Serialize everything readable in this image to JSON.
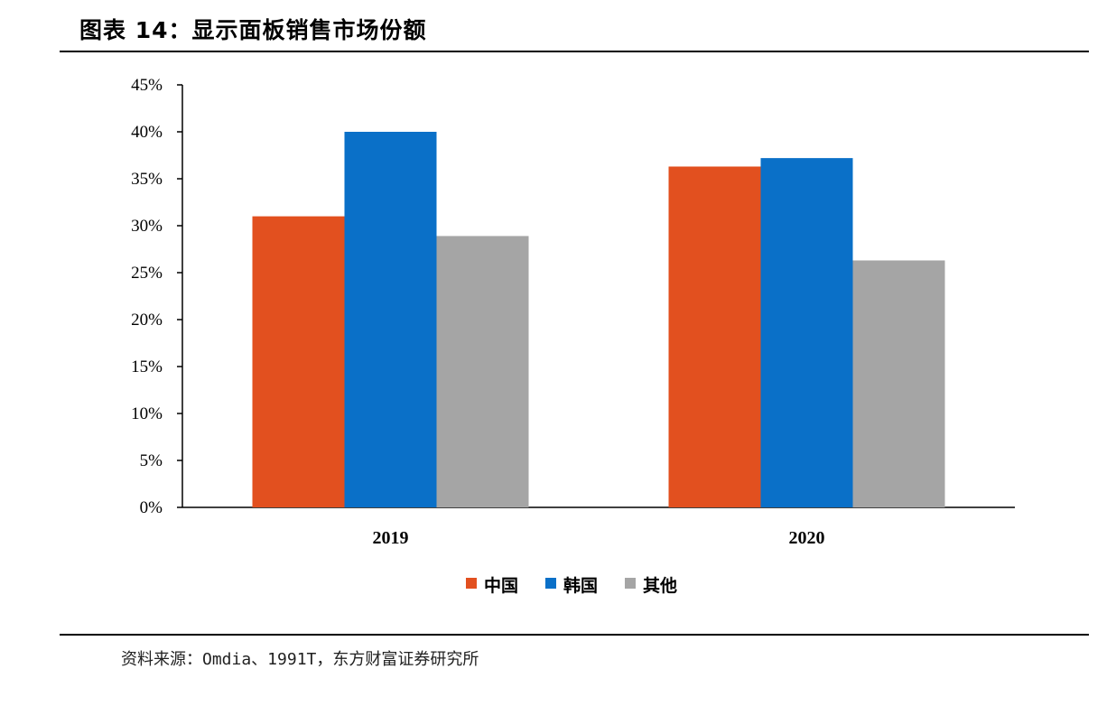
{
  "title": "图表 14：显示面板销售市场份额",
  "source": "资料来源：Omdia、1991T，东方财富证券研究所",
  "chart_data": {
    "type": "bar",
    "categories": [
      "2019",
      "2020"
    ],
    "series": [
      {
        "name": "中国",
        "values": [
          31,
          36.3
        ],
        "color": "#E2501F"
      },
      {
        "name": "韩国",
        "values": [
          40,
          37.2
        ],
        "color": "#0A70C8"
      },
      {
        "name": "其他",
        "values": [
          28.9,
          26.3
        ],
        "color": "#A5A5A5"
      }
    ],
    "ylim": [
      0,
      45
    ],
    "yticks": [
      "0%",
      "5%",
      "10%",
      "15%",
      "20%",
      "25%",
      "30%",
      "35%",
      "40%",
      "45%"
    ],
    "xlabel": "",
    "ylabel": "",
    "grid": false,
    "legend": "bottom"
  }
}
